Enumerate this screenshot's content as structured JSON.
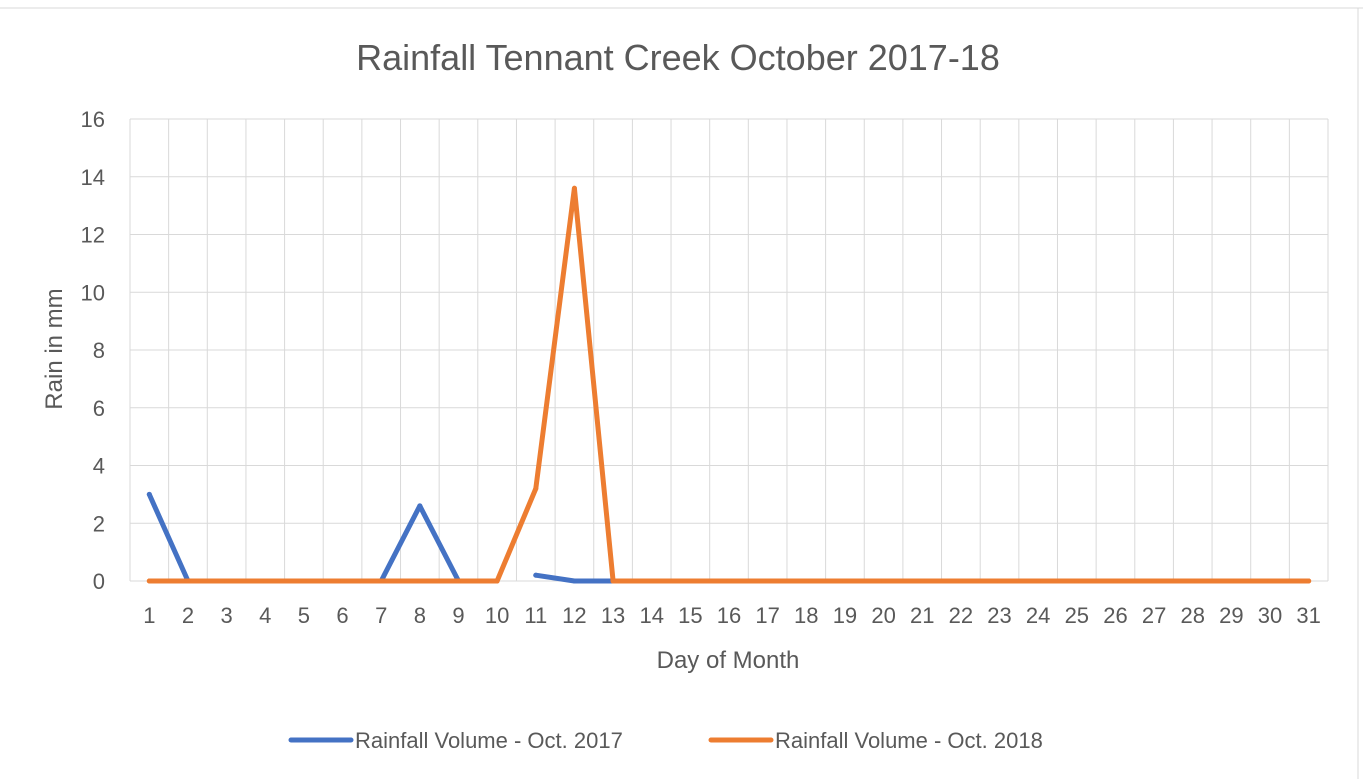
{
  "chart_data": {
    "type": "line",
    "title": "Rainfall Tennant Creek October 2017-18",
    "xlabel": "Day of Month",
    "ylabel": "Rain in mm",
    "categories": [
      "1",
      "2",
      "3",
      "4",
      "5",
      "6",
      "7",
      "8",
      "9",
      "10",
      "11",
      "12",
      "13",
      "14",
      "15",
      "16",
      "17",
      "18",
      "19",
      "20",
      "21",
      "22",
      "23",
      "24",
      "25",
      "26",
      "27",
      "28",
      "29",
      "30",
      "31"
    ],
    "ylim": [
      0,
      16
    ],
    "yticks": [
      "0",
      "2",
      "4",
      "6",
      "8",
      "10",
      "12",
      "14",
      "16"
    ],
    "grid": true,
    "legend_position": "bottom",
    "series": [
      {
        "name": "Rainfall Volume - Oct. 2017",
        "color": "#4472C4",
        "values": [
          3.0,
          0,
          0,
          0,
          null,
          null,
          0,
          2.6,
          0,
          null,
          0.2,
          0,
          0,
          null,
          null,
          null,
          null,
          null,
          null,
          null,
          null,
          null,
          null,
          null,
          null,
          null,
          null,
          null,
          null,
          null,
          null
        ]
      },
      {
        "name": "Rainfall Volume - Oct. 2018",
        "color": "#ED7D31",
        "values": [
          0,
          0,
          0,
          0,
          0,
          0,
          0,
          0,
          0,
          0,
          3.2,
          13.6,
          0,
          0,
          0,
          0,
          0,
          0,
          0,
          0,
          0,
          0,
          0,
          0,
          0,
          0,
          0,
          0,
          0,
          0,
          0
        ]
      }
    ]
  }
}
